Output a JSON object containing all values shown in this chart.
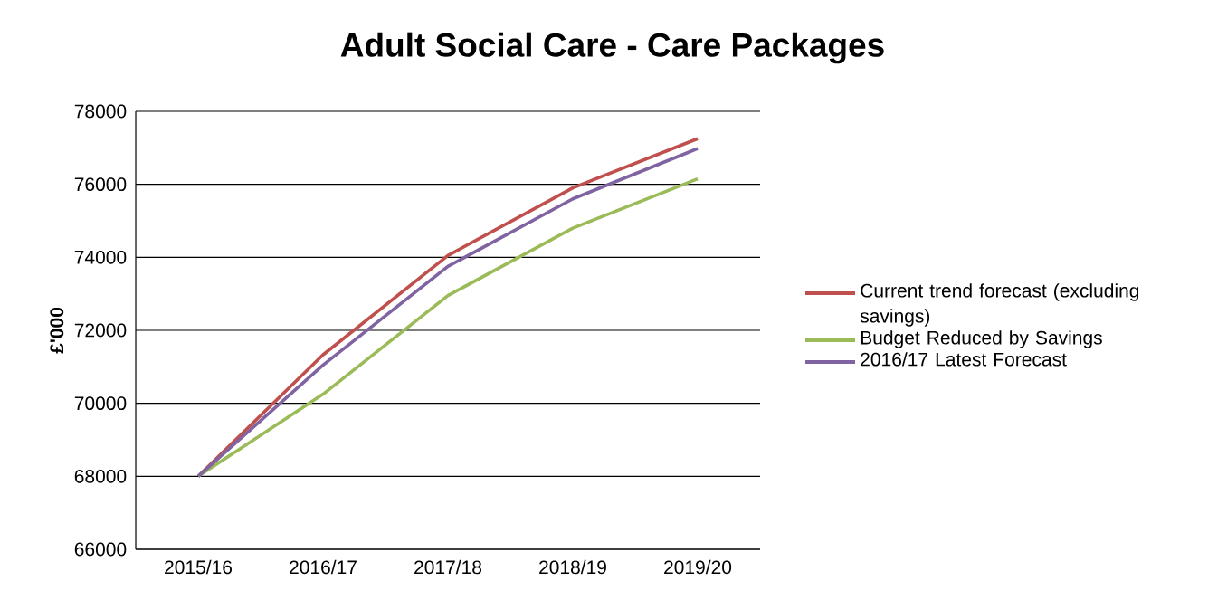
{
  "chart_data": {
    "type": "line",
    "title": "Adult Social Care - Care Packages",
    "ylabel": "£'000",
    "categories": [
      "2015/16",
      "2016/17",
      "2017/18",
      "2018/19",
      "2019/20"
    ],
    "series": [
      {
        "name": "Current trend forecast (excluding savings)",
        "color": "#c0504d",
        "values": [
          68000,
          71330,
          74050,
          75900,
          77250
        ]
      },
      {
        "name": "Budget Reduced by Savings",
        "color": "#9bbb59",
        "values": [
          68000,
          70250,
          72950,
          74800,
          76150
        ]
      },
      {
        "name": "2016/17 Latest Forecast",
        "color": "#8064a2",
        "values": [
          68000,
          71050,
          73750,
          75600,
          76980
        ]
      }
    ],
    "ylim": [
      66000,
      78000
    ],
    "yticks": [
      66000,
      68000,
      70000,
      72000,
      74000,
      76000,
      78000
    ],
    "grid": "y",
    "legend": "right",
    "marker": "none",
    "line_style": "solid"
  }
}
